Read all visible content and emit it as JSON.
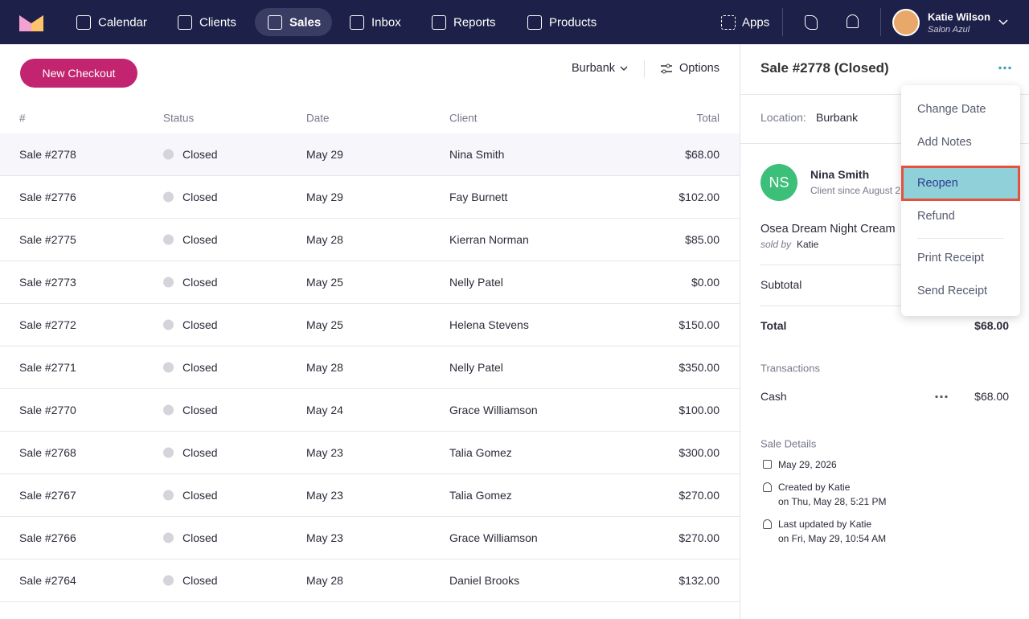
{
  "nav": {
    "items": [
      "Calendar",
      "Clients",
      "Sales",
      "Inbox",
      "Reports",
      "Products"
    ],
    "apps": "Apps",
    "user": {
      "name": "Katie Wilson",
      "salon": "Salon Azul"
    }
  },
  "toolbar": {
    "new_checkout": "New Checkout",
    "location": "Burbank",
    "options": "Options"
  },
  "table": {
    "headers": [
      "#",
      "Status",
      "Date",
      "Client",
      "Total"
    ],
    "rows": [
      [
        "Sale #2778",
        "Closed",
        "May 29",
        "Nina Smith",
        "$68.00"
      ],
      [
        "Sale #2776",
        "Closed",
        "May 29",
        "Fay Burnett",
        "$102.00"
      ],
      [
        "Sale #2775",
        "Closed",
        "May 28",
        "Kierran Norman",
        "$85.00"
      ],
      [
        "Sale #2773",
        "Closed",
        "May 25",
        "Nelly Patel",
        "$0.00"
      ],
      [
        "Sale #2772",
        "Closed",
        "May 25",
        "Helena Stevens",
        "$150.00"
      ],
      [
        "Sale #2771",
        "Closed",
        "May 28",
        "Nelly Patel",
        "$350.00"
      ],
      [
        "Sale #2770",
        "Closed",
        "May 24",
        "Grace Williamson",
        "$100.00"
      ],
      [
        "Sale #2768",
        "Closed",
        "May 23",
        "Talia Gomez",
        "$300.00"
      ],
      [
        "Sale #2767",
        "Closed",
        "May 23",
        "Talia Gomez",
        "$270.00"
      ],
      [
        "Sale #2766",
        "Closed",
        "May 23",
        "Grace Williamson",
        "$270.00"
      ],
      [
        "Sale #2764",
        "Closed",
        "May 28",
        "Daniel Brooks",
        "$132.00"
      ]
    ]
  },
  "detail": {
    "title": "Sale #2778 (Closed)",
    "location_label": "Location:",
    "location": "Burbank",
    "client": {
      "initials": "NS",
      "name": "Nina Smith",
      "since": "Client since August 2"
    },
    "item": {
      "name": "Osea Dream Night Cream",
      "sold_by": "sold by",
      "staff": "Katie"
    },
    "subtotal_label": "Subtotal",
    "total_label": "Total",
    "total": "$68.00",
    "transactions_label": "Transactions",
    "transaction": {
      "method": "Cash",
      "amount": "$68.00"
    },
    "details_label": "Sale Details",
    "date": "May 29, 2026",
    "created": [
      "Created by Katie",
      "on Thu, May 28, 5:21 PM"
    ],
    "updated": [
      "Last updated by Katie",
      "on Fri, May 29, 10:54 AM"
    ]
  },
  "menu": {
    "items": [
      "Change Date",
      "Add Notes",
      "Reopen",
      "Refund",
      "Print Receipt",
      "Send Receipt"
    ]
  }
}
